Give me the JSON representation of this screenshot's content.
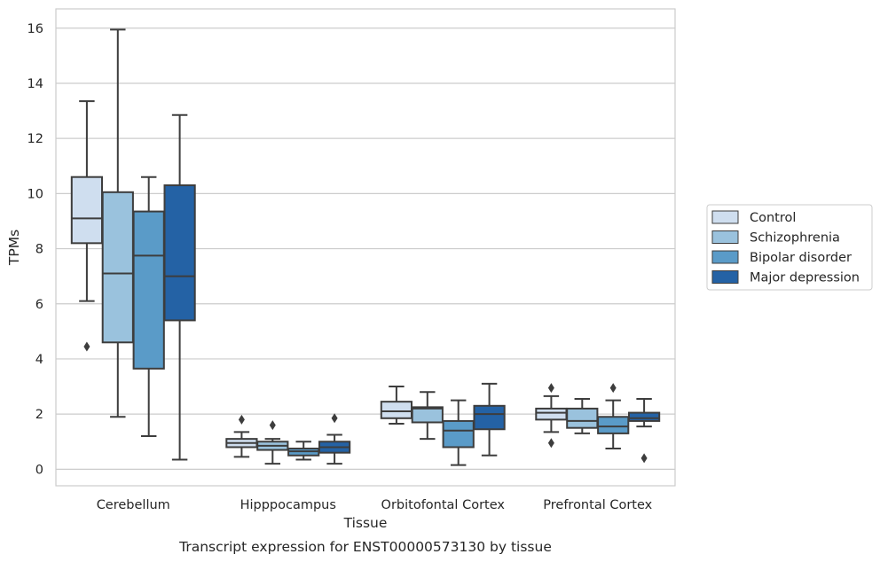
{
  "caption": "Transcript expression for ENST00000573130 by tissue",
  "chart_data": {
    "type": "box",
    "xlabel": "Tissue",
    "ylabel": "TPMs",
    "ylim": [
      -0.6,
      16.7
    ],
    "yticks": [
      0,
      2,
      4,
      6,
      8,
      10,
      12,
      14,
      16
    ],
    "grid": "horizontal",
    "legend_position": "right",
    "categories": [
      "Cerebellum",
      "Hipppocampus",
      "Orbitofontal Cortex",
      "Prefrontal Cortex"
    ],
    "series": [
      {
        "name": "Control",
        "color": "#cfdeef",
        "boxes": [
          {
            "whislo": 6.1,
            "q1": 8.2,
            "med": 9.1,
            "q3": 10.6,
            "whishi": 13.35,
            "fliers": [
              4.45
            ]
          },
          {
            "whislo": 0.45,
            "q1": 0.8,
            "med": 0.95,
            "q3": 1.1,
            "whishi": 1.35,
            "fliers": [
              1.8
            ]
          },
          {
            "whislo": 1.65,
            "q1": 1.85,
            "med": 2.1,
            "q3": 2.45,
            "whishi": 3.0,
            "fliers": []
          },
          {
            "whislo": 1.35,
            "q1": 1.8,
            "med": 2.05,
            "q3": 2.2,
            "whishi": 2.65,
            "fliers": [
              2.95,
              0.95
            ]
          }
        ]
      },
      {
        "name": "Schizophrenia",
        "color": "#9ac2dd",
        "boxes": [
          {
            "whislo": 1.9,
            "q1": 4.6,
            "med": 7.1,
            "q3": 10.05,
            "whishi": 15.95,
            "fliers": []
          },
          {
            "whislo": 0.2,
            "q1": 0.7,
            "med": 0.85,
            "q3": 1.0,
            "whishi": 1.1,
            "fliers": [
              1.6
            ]
          },
          {
            "whislo": 1.1,
            "q1": 1.7,
            "med": 2.2,
            "q3": 2.25,
            "whishi": 2.8,
            "fliers": []
          },
          {
            "whislo": 1.3,
            "q1": 1.5,
            "med": 1.75,
            "q3": 2.2,
            "whishi": 2.55,
            "fliers": []
          }
        ]
      },
      {
        "name": "Bipolar disorder",
        "color": "#5a9bc8",
        "boxes": [
          {
            "whislo": 1.2,
            "q1": 3.65,
            "med": 7.75,
            "q3": 9.35,
            "whishi": 10.6,
            "fliers": []
          },
          {
            "whislo": 0.35,
            "q1": 0.5,
            "med": 0.65,
            "q3": 0.75,
            "whishi": 1.0,
            "fliers": []
          },
          {
            "whislo": 0.15,
            "q1": 0.8,
            "med": 1.4,
            "q3": 1.75,
            "whishi": 2.5,
            "fliers": []
          },
          {
            "whislo": 0.75,
            "q1": 1.3,
            "med": 1.55,
            "q3": 1.9,
            "whishi": 2.5,
            "fliers": [
              2.95
            ]
          }
        ]
      },
      {
        "name": "Major depression",
        "color": "#2462a5",
        "boxes": [
          {
            "whislo": 0.35,
            "q1": 5.4,
            "med": 7.0,
            "q3": 10.3,
            "whishi": 12.85,
            "fliers": []
          },
          {
            "whislo": 0.2,
            "q1": 0.6,
            "med": 0.8,
            "q3": 1.0,
            "whishi": 1.25,
            "fliers": [
              1.85
            ]
          },
          {
            "whislo": 0.5,
            "q1": 1.45,
            "med": 2.0,
            "q3": 2.3,
            "whishi": 3.1,
            "fliers": []
          },
          {
            "whislo": 1.55,
            "q1": 1.75,
            "med": 1.85,
            "q3": 2.05,
            "whishi": 2.55,
            "fliers": [
              0.4
            ]
          }
        ]
      }
    ]
  }
}
